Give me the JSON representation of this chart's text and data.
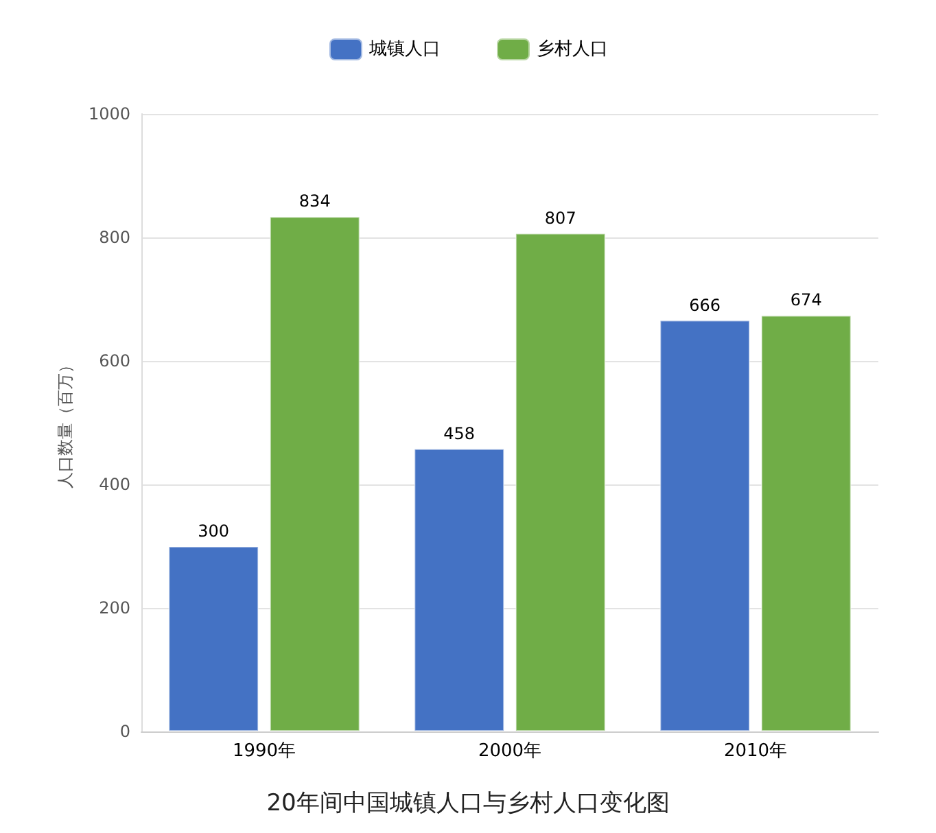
{
  "chart_data": {
    "type": "bar",
    "title": "20年间中国城镇人口与乡村人口变化图",
    "ylabel": "人口数量（百万）",
    "categories": [
      "1990年",
      "2000年",
      "2010年"
    ],
    "series": [
      {
        "name": "城镇人口",
        "color": "#4472c4",
        "values": [
          300,
          458,
          666
        ]
      },
      {
        "name": "乡村人口",
        "color": "#70ad47",
        "values": [
          834,
          807,
          674
        ]
      }
    ],
    "ylim": [
      0,
      1000
    ],
    "yticks": [
      0,
      200,
      400,
      600,
      800,
      1000
    ],
    "grid": "y",
    "legend": "top",
    "data_labels": true
  }
}
